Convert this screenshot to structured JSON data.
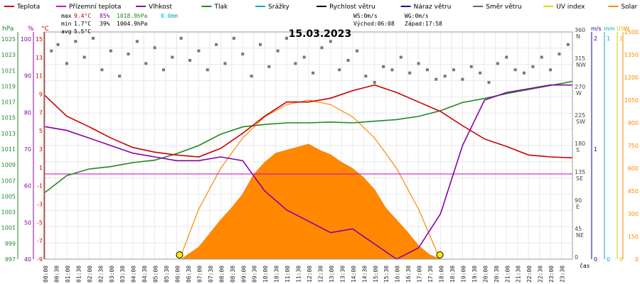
{
  "chart_data": {
    "type": "line",
    "title": "15.03.2023",
    "legend": [
      {
        "name": "Teplota",
        "color": "#cc0000"
      },
      {
        "name": "Přízemní teplota",
        "color": "#cc00cc"
      },
      {
        "name": "Vlhkost",
        "color": "#8800aa"
      },
      {
        "name": "Tlak",
        "color": "#228822"
      },
      {
        "name": "Srážky",
        "color": "#00aacc"
      },
      {
        "name": "Rychlost větru",
        "color": "#000000"
      },
      {
        "name": "Náraz větru",
        "color": "#1a0099"
      },
      {
        "name": "Směr větru",
        "color": "#666666"
      },
      {
        "name": "UV index",
        "color": "#dddd00"
      },
      {
        "name": "Solar",
        "color": "#ff8800"
      }
    ],
    "stats": {
      "max": {
        "label": "max",
        "temp": "9.4°C",
        "hum": "85%",
        "press": "1018.9hPa",
        "rain": "0.0mm"
      },
      "min": {
        "label": "min",
        "temp": "1.7°C",
        "hum": "39%",
        "press": "1004.9hPa"
      },
      "avg": {
        "label": "avg",
        "temp": "5.5°C"
      }
    },
    "wind_info": {
      "ws": "WS:0m/s",
      "wg": "WG:0m/s",
      "sunrise": "Východ:06:08",
      "sunset": "Západ:17:58"
    },
    "x_label": "čas",
    "x_ticks": [
      "00:00",
      "00:30",
      "01:00",
      "01:30",
      "02:00",
      "02:30",
      "03:00",
      "03:30",
      "04:00",
      "04:30",
      "05:00",
      "05:30",
      "06:00",
      "06:30",
      "07:00",
      "07:30",
      "08:00",
      "08:30",
      "09:00",
      "09:30",
      "10:00",
      "10:30",
      "11:00",
      "11:30",
      "12:00",
      "12:30",
      "13:00",
      "13:30",
      "14:00",
      "14:30",
      "15:00",
      "15:30",
      "16:00",
      "16:30",
      "17:00",
      "17:30",
      "18:00",
      "18:30",
      "19:00",
      "19:30",
      "20:00",
      "20:30",
      "21:00",
      "21:30",
      "22:00",
      "22:30",
      "23:00",
      "23:30"
    ],
    "axes": {
      "pressure": {
        "title": "hPa",
        "color": "#228822",
        "ticks": [
          "1025",
          "1023",
          "1021",
          "1019",
          "1017",
          "1015",
          "1013",
          "1011",
          "1009",
          "1007",
          "1005",
          "1003",
          "1001",
          "999",
          "997"
        ],
        "range": [
          997,
          1025
        ]
      },
      "humidity": {
        "title": "%",
        "color": "#8800aa",
        "ticks": [
          "100",
          "90",
          "80",
          "70",
          "60",
          "50",
          "40"
        ],
        "range": [
          40,
          100
        ]
      },
      "temperature": {
        "title": "°C",
        "color": "#cc0000",
        "ticks": [
          "15",
          "13",
          "11",
          "9",
          "7",
          "5",
          "3",
          "1",
          "-1",
          "-3",
          "-5",
          "-7",
          "-9"
        ],
        "range": [
          -9,
          15
        ]
      },
      "direction": {
        "ticks": [
          "360",
          "315",
          "270",
          "225",
          "180",
          "135",
          "90",
          "45",
          "0"
        ],
        "names": [
          "N",
          "NW",
          "W",
          "SW",
          "S",
          "SE",
          "E",
          "NE",
          ""
        ],
        "range": [
          0,
          360
        ]
      },
      "wind": {
        "title": "m/s",
        "color": "#1a0099",
        "ticks": [
          "2",
          "1",
          "0"
        ]
      },
      "rain": {
        "title": "mm",
        "color": "#00aacc",
        "ticks": [
          "1",
          "0"
        ]
      },
      "uv": {
        "title": "UV",
        "color": "#cccc00",
        "ticks": [
          "1",
          "0"
        ]
      },
      "solar": {
        "title": "W",
        "color": "#ff8800",
        "ticks": [
          "1500",
          "1350",
          "1200",
          "1050",
          "900",
          "750",
          "600",
          "450",
          "300",
          "150",
          "0"
        ],
        "range": [
          0,
          1500
        ]
      }
    },
    "series": {
      "temperature": {
        "name": "Teplota",
        "x": [
          0,
          1,
          2,
          3,
          4,
          5,
          6,
          7,
          8,
          9,
          10,
          11,
          12,
          13,
          14,
          15,
          16,
          17,
          18,
          19,
          20,
          21,
          22,
          23,
          24
        ],
        "y": [
          8.3,
          6.1,
          5.0,
          3.8,
          2.8,
          2.3,
          2.0,
          1.8,
          2.7,
          4.3,
          6.1,
          7.6,
          7.6,
          8.0,
          8.8,
          9.4,
          8.6,
          7.6,
          6.6,
          5.1,
          3.7,
          2.9,
          2.0,
          1.8,
          1.7
        ]
      },
      "humidity": {
        "name": "Vlhkost",
        "x": [
          0,
          1,
          2,
          3,
          4,
          5,
          6,
          7,
          8,
          9,
          10,
          11,
          12,
          13,
          14,
          15,
          16,
          17,
          18,
          19,
          20,
          21,
          22,
          23,
          24
        ],
        "y": [
          75,
          74,
          72,
          70,
          68,
          67,
          66,
          66,
          67,
          66,
          58,
          53,
          50,
          47,
          48,
          44,
          40,
          43,
          52,
          70,
          82,
          84,
          85,
          86,
          86
        ],
        "x_note": "hours"
      },
      "pressure": {
        "name": "Tlak",
        "x": [
          0,
          1,
          2,
          3,
          4,
          5,
          6,
          7,
          8,
          9,
          10,
          11,
          12,
          13,
          14,
          15,
          16,
          17,
          18,
          19,
          20,
          21,
          22,
          23,
          24
        ],
        "y": [
          1005.2,
          1007.3,
          1008.1,
          1008.4,
          1008.9,
          1009.2,
          1010.0,
          1011.0,
          1012.4,
          1013.3,
          1013.6,
          1013.8,
          1013.8,
          1013.9,
          1013.8,
          1014.0,
          1014.2,
          1014.6,
          1015.3,
          1016.3,
          1016.8,
          1017.4,
          1017.9,
          1018.4,
          1018.9
        ]
      },
      "ground_temperature": {
        "name": "Přízemní teplota",
        "y_const": 0
      },
      "solar": {
        "name": "Solar",
        "x": [
          6.2,
          7,
          7.5,
          8,
          8.5,
          9,
          9.5,
          10,
          10.5,
          11,
          11.5,
          12,
          12.5,
          13,
          13.5,
          14,
          14.5,
          15,
          15.5,
          16,
          16.5,
          17,
          17.5,
          18
        ],
        "y": [
          0,
          80,
          170,
          260,
          340,
          430,
          560,
          640,
          700,
          720,
          740,
          760,
          720,
          690,
          640,
          600,
          540,
          460,
          340,
          260,
          180,
          90,
          30,
          0
        ]
      },
      "solar_max": {
        "x": [
          6.13,
          7,
          8,
          9,
          10,
          11,
          12,
          13,
          14,
          15,
          16,
          17,
          17.97
        ],
        "y": [
          0,
          330,
          600,
          800,
          940,
          1020,
          1050,
          1020,
          940,
          800,
          600,
          330,
          0
        ]
      },
      "wind_direction": {
        "name": "Směr větru",
        "x": [
          0.3,
          0.6,
          1,
          1.4,
          1.8,
          2.2,
          2.6,
          3,
          3.4,
          3.8,
          4.2,
          4.6,
          5,
          5.4,
          5.8,
          6.2,
          6.6,
          7,
          7.4,
          7.8,
          8.2,
          8.6,
          9,
          9.4,
          9.8,
          10.2,
          10.6,
          11,
          11.4,
          11.8,
          12.2,
          12.6,
          13,
          13.4,
          13.8,
          14.2,
          14.6,
          15,
          15.4,
          15.8,
          16.2,
          16.6,
          17,
          17.4,
          17.8,
          18.2,
          18.6,
          19,
          19.4,
          19.8,
          20.2,
          20.6,
          21,
          21.4,
          21.8,
          22.2,
          22.6,
          23,
          23.4,
          23.8
        ],
        "y": [
          330,
          340,
          310,
          345,
          320,
          350,
          300,
          330,
          290,
          325,
          345,
          310,
          335,
          300,
          320,
          350,
          315,
          330,
          300,
          340,
          310,
          350,
          325,
          290,
          340,
          305,
          330,
          350,
          310,
          320,
          295,
          335,
          345,
          300,
          315,
          330,
          290,
          280,
          305,
          300,
          320,
          295,
          310,
          300,
          285,
          290,
          300,
          285,
          305,
          295,
          280,
          310,
          320,
          300,
          295,
          305,
          320,
          300,
          325,
          340
        ]
      },
      "sunrise_marker": {
        "x": 6.13
      },
      "sunset_marker": {
        "x": 17.97
      }
    }
  }
}
